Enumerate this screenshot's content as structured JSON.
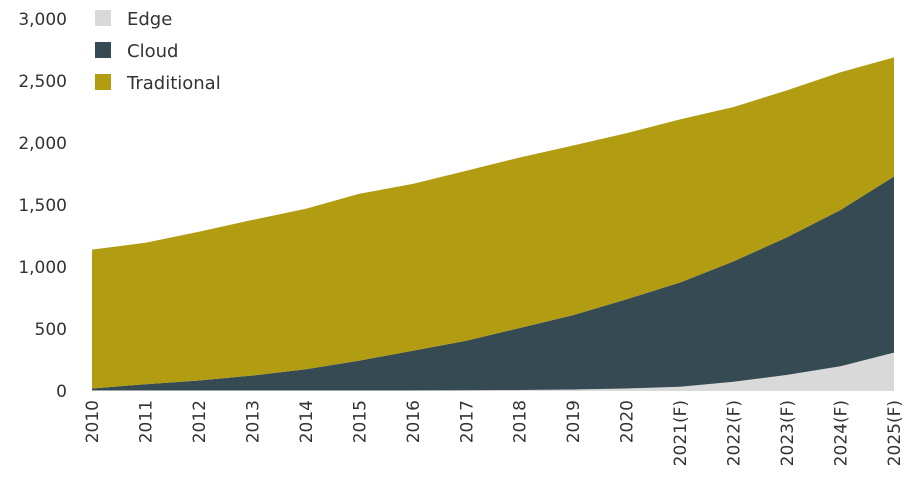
{
  "chart_data": {
    "type": "area",
    "stacked": true,
    "categories": [
      "2010",
      "2011",
      "2012",
      "2013",
      "2014",
      "2015",
      "2016",
      "2017",
      "2018",
      "2019",
      "2020",
      "2021(F)",
      "2022(F)",
      "2023(F)",
      "2024(F)",
      "2025(F)"
    ],
    "series": [
      {
        "name": "Edge",
        "color": "#d9d9d9",
        "values": [
          5,
          5,
          5,
          5,
          5,
          5,
          5,
          6,
          8,
          12,
          20,
          35,
          75,
          130,
          200,
          310
        ]
      },
      {
        "name": "Cloud",
        "color": "#354a53",
        "values": [
          15,
          50,
          80,
          120,
          170,
          240,
          320,
          400,
          500,
          600,
          720,
          840,
          970,
          1110,
          1260,
          1420
        ]
      },
      {
        "name": "Traditional",
        "color": "#b29c11",
        "values": [
          1120,
          1140,
          1200,
          1255,
          1295,
          1345,
          1345,
          1370,
          1375,
          1368,
          1340,
          1315,
          1245,
          1185,
          1110,
          960
        ]
      }
    ],
    "yticks": [
      "3,000",
      "2,500",
      "2,000",
      "1,500",
      "1,000",
      "500",
      "0"
    ],
    "ylim": [
      0,
      3000
    ],
    "title": "",
    "xlabel": "",
    "ylabel": "",
    "legend_position": "top-left",
    "grid": false
  }
}
